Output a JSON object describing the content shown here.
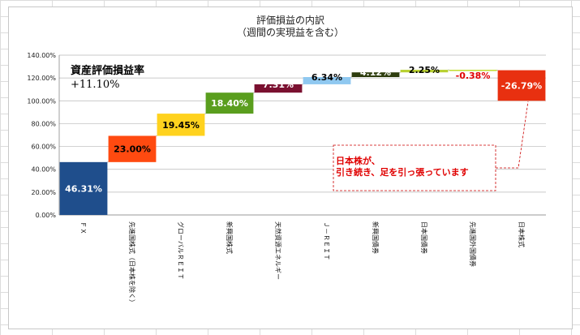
{
  "chart_data": {
    "type": "waterfall",
    "title": [
      "評価損益の内訳",
      "（週間の実現益を含む）"
    ],
    "categories": [
      "ＦＸ",
      "先進国株式（日本株を除く）",
      "グローバルＲＥＩＴ",
      "新興国株式",
      "天然資源エネルギー",
      "Ｊ－ＲＥＩＴ",
      "新興国債券",
      "日本国債券",
      "先進国外国債券",
      "日本株式"
    ],
    "values": [
      46.31,
      23.0,
      19.45,
      18.4,
      7.31,
      6.34,
      4.12,
      2.25,
      -0.38,
      -26.79
    ],
    "data_labels": [
      "46.31%",
      "23.00%",
      "19.45%",
      "18.40%",
      "7.31%",
      "6.34%",
      "4.12%",
      "2.25%",
      "-0.38%",
      "-26.79%"
    ],
    "colors": [
      "#1f4e8c",
      "#ff4a10",
      "#ffd21e",
      "#5a9e1e",
      "#7a1030",
      "#8fc8f0",
      "#2e3d0e",
      "#b8d030",
      "#c0dc30",
      "#e83010"
    ],
    "label_colors": [
      "#ffffff",
      "#000000",
      "#000000",
      "#ffffff",
      "#ffffff",
      "#000000",
      "#ffffff",
      "#000000",
      "#e00000",
      "#ffffff"
    ],
    "ylim": [
      0,
      140
    ],
    "yticks": [
      "0.00%",
      "20.00%",
      "40.00%",
      "60.00%",
      "80.00%",
      "100.00%",
      "120.00%",
      "140.00%"
    ],
    "ytick_values": [
      0,
      20,
      40,
      60,
      80,
      100,
      120,
      140
    ],
    "xlabel": "",
    "ylabel": "",
    "grid": true,
    "annotations": {
      "rate_label": "資産評価損益率",
      "rate_value": "+11.10%",
      "note": [
        "日本株が、",
        "引き続き、足を引っ張っています"
      ]
    }
  }
}
